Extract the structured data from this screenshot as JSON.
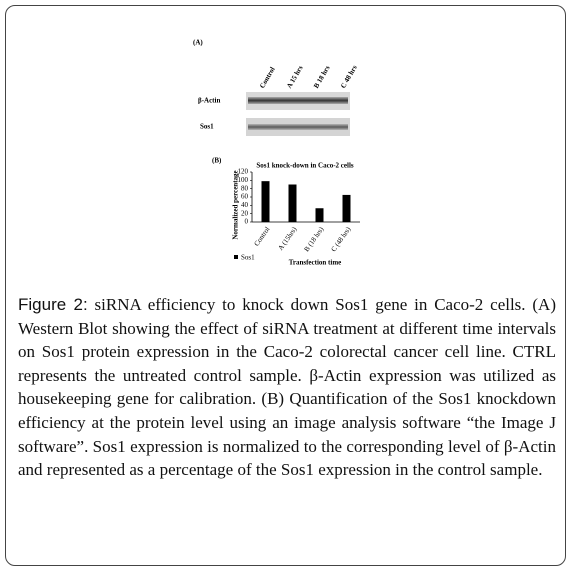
{
  "panel_a": {
    "label": "(A)",
    "lanes": [
      "Control",
      "A 15 hrs",
      "B 18 hrs",
      "C 48 hrs"
    ],
    "rows": [
      "β-Actin",
      "Sos1"
    ]
  },
  "panel_b": {
    "label": "(B)"
  },
  "chart_data": {
    "type": "bar",
    "title": "Sos1 knock-down in Caco-2 cells",
    "y_label": "Normalized percentage",
    "x_label": "Transfection time",
    "categories": [
      "Control",
      "A (15hrs)",
      "B (18 hrs)",
      "C (48 hrs)"
    ],
    "series": [
      {
        "name": "Sos1",
        "color": "#000000",
        "values": [
          98,
          90,
          33,
          65
        ]
      }
    ],
    "ylim": [
      0,
      120
    ],
    "yticks": [
      0,
      20,
      40,
      60,
      80,
      100,
      120
    ],
    "grid": false,
    "legend": "bottom-left"
  },
  "caption": {
    "label": "Figure 2:",
    "text": "siRNA efficiency to knock down Sos1 gene in Caco-2 cells. (A) Western Blot showing the effect of siRNA treatment at different time intervals on Sos1 protein expression in the Caco-2 colorectal cancer cell line. CTRL represents the untreated control sample. β-Actin expression was utilized as housekeeping gene for calibration. (B) Quantification of the Sos1 knockdown efficiency at the protein level using an image analysis software “the Image J software”. Sos1 expression is normalized to the corresponding level of β-Actin and represented as a percentage of the Sos1 expression in the control sample."
  }
}
